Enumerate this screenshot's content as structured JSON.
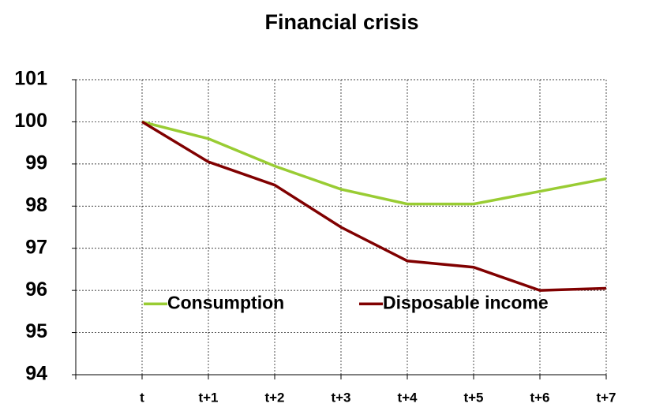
{
  "chart_data": {
    "type": "line",
    "title": "Financial crisis",
    "categories": [
      null,
      "t",
      "t+1",
      "t+2",
      "t+3",
      "t+4",
      "t+5",
      "t+6",
      "t+7"
    ],
    "series": [
      {
        "name": "Consumption",
        "color": "#99cc33",
        "values": [
          null,
          100,
          99.6,
          98.95,
          98.4,
          98.05,
          98.05,
          98.35,
          98.65
        ]
      },
      {
        "name": "Disposable income",
        "color": "#800000",
        "values": [
          null,
          100,
          99.05,
          98.5,
          97.5,
          96.7,
          96.55,
          96.0,
          96.05
        ]
      }
    ],
    "ylim": [
      94,
      101
    ],
    "yticks": [
      94,
      95,
      96,
      97,
      98,
      99,
      100,
      101
    ],
    "grid": true,
    "legend": "lower center"
  }
}
